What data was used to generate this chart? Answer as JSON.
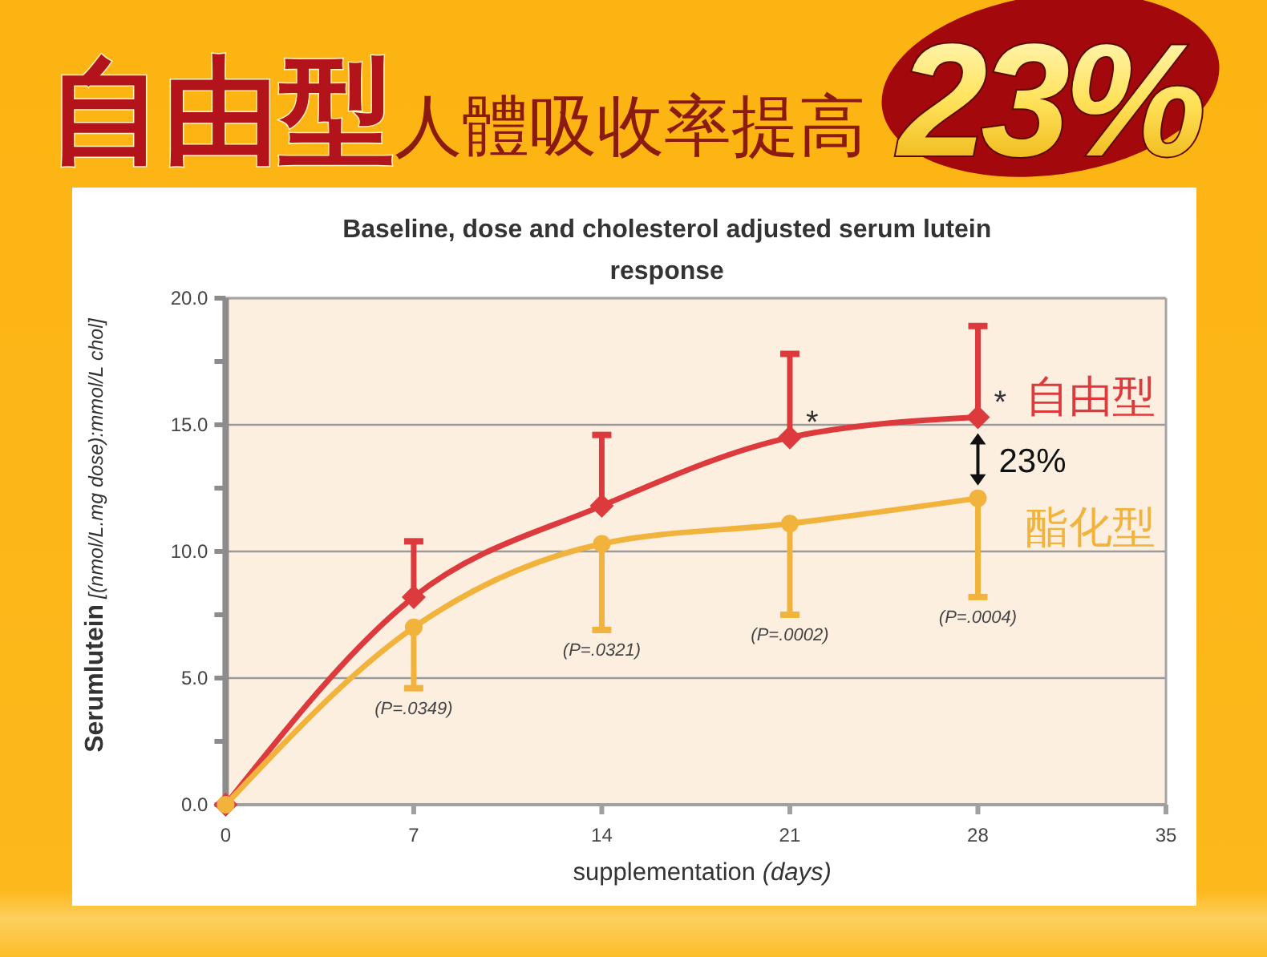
{
  "chart_data": {
    "type": "line",
    "title": "自由型人體吸收率提高23%",
    "subtitle": "Baseline, dose and cholesterol adjusted serum lutein response",
    "xlabel": "supplementation (days)",
    "ylabel": "Serumlutein [(nmol/L.mg dose):mmol/L chol]",
    "x": [
      0,
      7,
      14,
      21,
      28
    ],
    "series": [
      {
        "name": "自由型",
        "color": "#dc3a3c",
        "marker": "diamond",
        "values": [
          0,
          8.2,
          11.8,
          14.5,
          15.3
        ],
        "errors": [
          null,
          [
            8.2,
            10.4
          ],
          [
            11.8,
            14.6
          ],
          [
            14.5,
            17.8
          ],
          [
            15.3,
            18.9
          ]
        ]
      },
      {
        "name": "酯化型",
        "color": "#f2b33c",
        "marker": "circle",
        "values": [
          0,
          7.0,
          10.3,
          11.1,
          12.1
        ],
        "errors": [
          null,
          [
            4.6,
            7.0
          ],
          [
            6.9,
            10.3
          ],
          [
            7.5,
            11.1
          ],
          [
            8.2,
            12.1
          ]
        ]
      }
    ],
    "xlim": [
      0,
      35
    ],
    "xticks": [
      0,
      7,
      14,
      21,
      28,
      35
    ],
    "ylim": [
      0,
      20
    ],
    "yticks": [
      {
        "value": 0,
        "label": "0.0"
      },
      {
        "value": 2.5,
        "label": null
      },
      {
        "value": 5,
        "label": "5.0"
      },
      {
        "value": 7.5,
        "label": null
      },
      {
        "value": 10,
        "label": "10.0"
      },
      {
        "value": 12.5,
        "label": null
      },
      {
        "value": 15,
        "label": "15.0"
      },
      {
        "value": 17.5,
        "label": null
      },
      {
        "value": 20,
        "label": "20.0"
      }
    ],
    "grid": "y",
    "annotations": [
      {
        "text": "*",
        "x": 21,
        "y": 14.5
      },
      {
        "text": "*",
        "x": 28,
        "y": 15.3
      },
      "23%",
      {
        "text": "(P=.0349)",
        "x": 7,
        "y": 4.6
      },
      {
        "text": "(P=.0321)",
        "x": 14,
        "y": 6.9
      },
      {
        "text": "(P=.0002)",
        "x": 21,
        "y": 7.5
      },
      {
        "text": "(P=.0004)",
        "x": 28,
        "y": 8.2
      }
    ]
  }
}
